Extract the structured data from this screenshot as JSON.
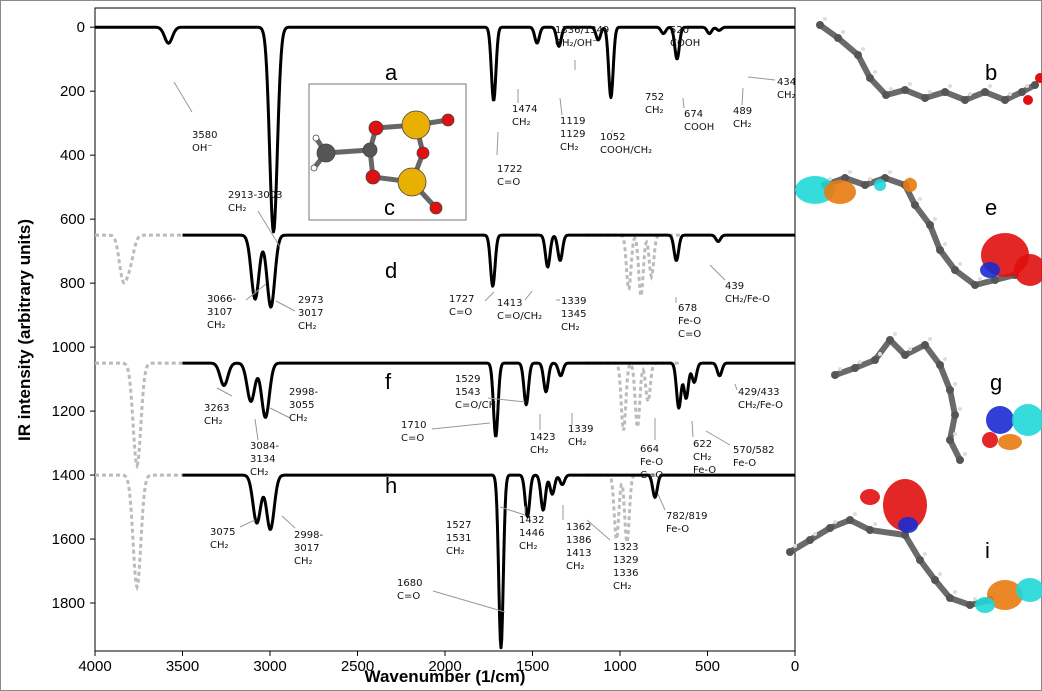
{
  "chart_data": {
    "type": "line",
    "xlabel": "Wavenumber (1/cm)",
    "ylabel": "IR intensity (arbitrary units)",
    "xlim": [
      4000,
      0
    ],
    "ylim": [
      1950,
      -60
    ],
    "x_ticks": [
      "4000",
      "3500",
      "3000",
      "2500",
      "2000",
      "1500",
      "1000",
      "500",
      "0"
    ],
    "y_ticks": [
      "0",
      "200",
      "400",
      "600",
      "800",
      "1000",
      "1200",
      "1400",
      "1600",
      "1800"
    ],
    "panel_labels": [
      "a",
      "d",
      "f",
      "h"
    ],
    "inset_labels": [
      "b",
      "e",
      "g",
      "i",
      "c"
    ],
    "series": [
      {
        "name": "a",
        "baseline": 0,
        "peaks": [
          [
            3580,
            50
          ],
          [
            2980,
            640
          ],
          [
            1722,
            230
          ],
          [
            1474,
            50
          ],
          [
            1349,
            60
          ],
          [
            1124,
            40
          ],
          [
            1052,
            220
          ],
          [
            752,
            20
          ],
          [
            674,
            100
          ],
          [
            489,
            20
          ],
          [
            434,
            10
          ]
        ],
        "dotted_peaks": []
      },
      {
        "name": "d",
        "baseline": 650,
        "peaks": [
          [
            3085,
            200
          ],
          [
            2995,
            225
          ],
          [
            1727,
            160
          ],
          [
            1413,
            100
          ],
          [
            1342,
            80
          ],
          [
            678,
            80
          ],
          [
            439,
            20
          ]
        ],
        "dotted_peaks": [
          [
            3840,
            130
          ],
          [
            3800,
            80
          ],
          [
            950,
            170
          ],
          [
            880,
            190
          ],
          [
            820,
            130
          ]
        ]
      },
      {
        "name": "f",
        "baseline": 1050,
        "peaks": [
          [
            3263,
            70
          ],
          [
            3109,
            120
          ],
          [
            3026,
            170
          ],
          [
            1710,
            230
          ],
          [
            1536,
            130
          ],
          [
            1423,
            90
          ],
          [
            1339,
            40
          ],
          [
            664,
            140
          ],
          [
            622,
            110
          ],
          [
            576,
            60
          ],
          [
            431,
            40
          ]
        ],
        "dotted_peaks": [
          [
            3760,
            320
          ],
          [
            980,
            210
          ],
          [
            900,
            200
          ],
          [
            840,
            120
          ]
        ]
      },
      {
        "name": "h",
        "baseline": 1400,
        "peaks": [
          [
            3075,
            150
          ],
          [
            2998,
            170
          ],
          [
            1680,
            540
          ],
          [
            1529,
            130
          ],
          [
            1439,
            110
          ],
          [
            1387,
            60
          ],
          [
            1330,
            30
          ],
          [
            800,
            70
          ]
        ],
        "dotted_peaks": [
          [
            3760,
            350
          ],
          [
            1020,
            200
          ],
          [
            960,
            210
          ]
        ]
      }
    ],
    "annotations": [
      {
        "lines": [
          "3580",
          "OH⁻"
        ]
      },
      {
        "lines": [
          "2913-3003",
          "CH₂"
        ]
      },
      {
        "lines": [
          "1722",
          "C=O"
        ]
      },
      {
        "lines": [
          "1474",
          "CH₂"
        ]
      },
      {
        "lines": [
          "1336/1349",
          "CH₂/OH⁻"
        ]
      },
      {
        "lines": [
          "1119",
          "1129",
          "CH₂"
        ]
      },
      {
        "lines": [
          "1052",
          "COOH/CH₂"
        ]
      },
      {
        "lines": [
          "520",
          "COOH"
        ]
      },
      {
        "lines": [
          "752",
          "CH₂"
        ]
      },
      {
        "lines": [
          "674",
          "COOH"
        ]
      },
      {
        "lines": [
          "489",
          "CH₂"
        ]
      },
      {
        "lines": [
          "434",
          "CH₂"
        ]
      },
      {
        "lines": [
          "3066-",
          "3107",
          "CH₂"
        ]
      },
      {
        "lines": [
          "2973",
          "3017",
          "CH₂"
        ]
      },
      {
        "lines": [
          "1727",
          "C=O"
        ]
      },
      {
        "lines": [
          "1413",
          "C=O/CH₂"
        ]
      },
      {
        "lines": [
          "1339",
          "1345",
          "CH₂"
        ]
      },
      {
        "lines": [
          "678",
          "Fe-O",
          "C=O"
        ]
      },
      {
        "lines": [
          "439",
          "CH₂/Fe-O"
        ]
      },
      {
        "lines": [
          "3263",
          "CH₂"
        ]
      },
      {
        "lines": [
          "2998-",
          "3055",
          "CH₂"
        ]
      },
      {
        "lines": [
          "3084-",
          "3134",
          "CH₂"
        ]
      },
      {
        "lines": [
          "1529",
          "1543",
          "C=O/CH₂"
        ]
      },
      {
        "lines": [
          "1710",
          "C=O"
        ]
      },
      {
        "lines": [
          "1423",
          "CH₂"
        ]
      },
      {
        "lines": [
          "1339",
          "CH₂"
        ]
      },
      {
        "lines": [
          "664",
          "Fe-O",
          "C=O"
        ]
      },
      {
        "lines": [
          "622",
          "CH₂",
          "Fe-O"
        ]
      },
      {
        "lines": [
          "570/582",
          "Fe-O"
        ]
      },
      {
        "lines": [
          "429/433",
          "CH₂/Fe-O"
        ]
      },
      {
        "lines": [
          "3075",
          "CH₂"
        ]
      },
      {
        "lines": [
          "2998-",
          "3017",
          "CH₂"
        ]
      },
      {
        "lines": [
          "1527",
          "1531",
          "CH₂"
        ]
      },
      {
        "lines": [
          "1432",
          "1446",
          "CH₂"
        ]
      },
      {
        "lines": [
          "1362",
          "1386",
          "1413",
          "CH₂"
        ]
      },
      {
        "lines": [
          "1323",
          "1329",
          "1336",
          "CH₂"
        ]
      },
      {
        "lines": [
          "782/819",
          "Fe-O"
        ]
      },
      {
        "lines": [
          "1680",
          "C=O"
        ]
      }
    ],
    "colors": {
      "trace": "#000000",
      "dotted": "#bbbbbb",
      "carbon": "#555555",
      "oxygen": "#e01010",
      "iron": "#e8b000",
      "orbital_red": "#e01010",
      "orbital_blue": "#1a2ad0",
      "orbital_orange": "#e87a10",
      "orbital_cyan": "#20d8d8"
    }
  }
}
